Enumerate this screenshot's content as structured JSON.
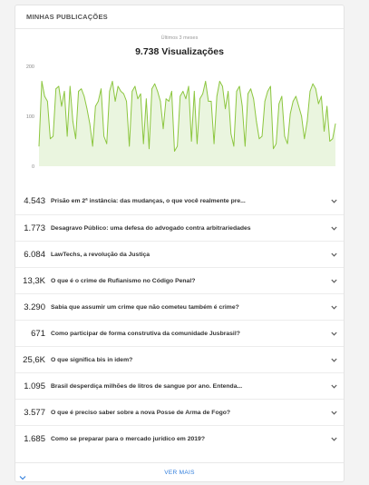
{
  "widget": {
    "title": "MINHAS PUBLICAÇÕES",
    "period": "Últimos 3 meses",
    "total": "9.738 Visualizações",
    "footer_label": "VER MAIS"
  },
  "colors": {
    "line": "#8cc63f",
    "fill": "#eaf5df",
    "link": "#2f7ddc"
  },
  "chart_data": {
    "type": "area",
    "y_ticks": [
      "200",
      "100",
      "0"
    ],
    "ylim": [
      0,
      200
    ],
    "grid": false,
    "values": [
      40,
      170,
      140,
      130,
      55,
      60,
      155,
      160,
      120,
      150,
      60,
      160,
      90,
      55,
      150,
      155,
      140,
      115,
      85,
      40,
      120,
      130,
      155,
      60,
      45,
      150,
      170,
      130,
      160,
      150,
      145,
      130,
      40,
      150,
      160,
      135,
      145,
      45,
      135,
      35,
      155,
      165,
      150,
      130,
      75,
      135,
      130,
      150,
      30,
      40,
      140,
      150,
      135,
      160,
      50,
      150,
      45,
      135,
      145,
      170,
      130,
      130,
      45,
      140,
      170,
      160,
      115,
      150,
      65,
      40,
      150,
      160,
      120,
      40,
      145,
      155,
      135,
      90,
      55,
      60,
      130,
      150,
      160,
      35,
      45,
      125,
      140,
      60,
      45,
      105,
      130,
      140,
      120,
      100,
      55,
      90,
      150,
      165,
      155,
      125,
      140,
      70,
      120,
      50,
      55,
      85
    ]
  },
  "publications": [
    {
      "views": "4.543",
      "title": "Prisão em 2ª instância: das mudanças, o que você realmente pre..."
    },
    {
      "views": "1.773",
      "title": "Desagravo Público: uma defesa do advogado contra arbitrariedades"
    },
    {
      "views": "6.084",
      "title": "LawTechs, a revolução da Justiça"
    },
    {
      "views": "13,3K",
      "title": "O que é o crime de Rufianismo no Código Penal?"
    },
    {
      "views": "3.290",
      "title": "Sabia que assumir um crime que não cometeu também é crime?"
    },
    {
      "views": "671",
      "title": "Como participar de forma construtiva da comunidade Jusbrasil?"
    },
    {
      "views": "25,6K",
      "title": "O que significa bis in idem?"
    },
    {
      "views": "1.095",
      "title": "Brasil desperdiça milhões de litros de sangue por ano. Entenda..."
    },
    {
      "views": "3.577",
      "title": "O que é preciso saber sobre a nova Posse de Arma de Fogo?"
    },
    {
      "views": "1.685",
      "title": "Como se preparar para o mercado jurídico em 2019?"
    }
  ]
}
